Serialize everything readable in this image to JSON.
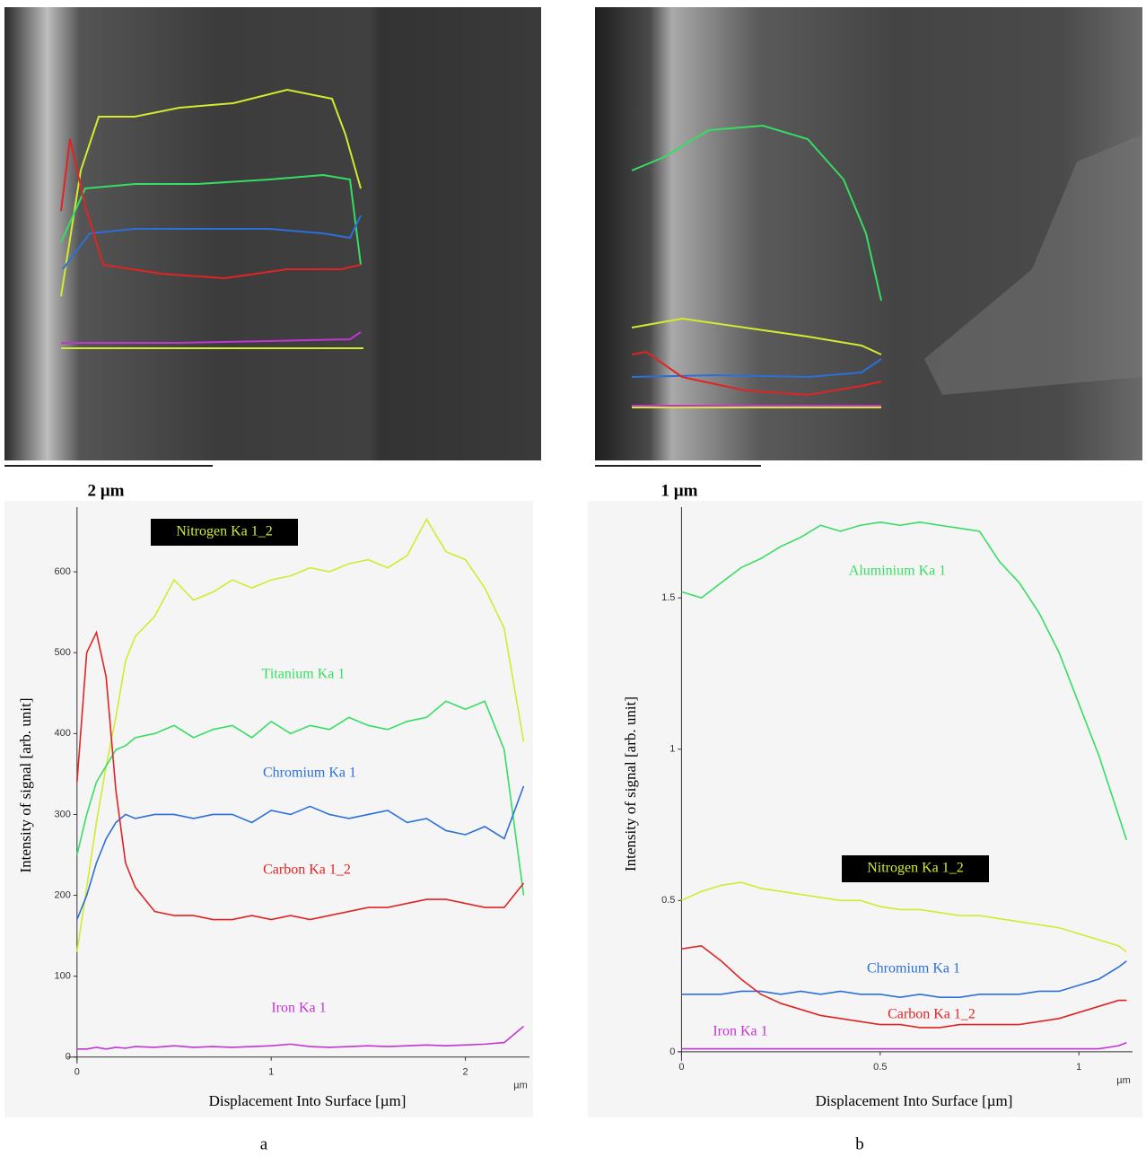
{
  "chart_data": [
    {
      "type": "line",
      "x_label": "Displacement Into Surface [µm]",
      "y_label": "Intensity of signal [arb.  unit]",
      "x_unit": "µm",
      "xlim": [
        -0.05,
        2.33
      ],
      "xticks": [
        0,
        1,
        2
      ],
      "ylim": [
        -8,
        680
      ],
      "yticks": [
        0,
        100,
        200,
        300,
        400,
        500,
        600
      ],
      "x": [
        0,
        0.05,
        0.1,
        0.15,
        0.2,
        0.25,
        0.3,
        0.4,
        0.5,
        0.6,
        0.7,
        0.8,
        0.9,
        1.0,
        1.1,
        1.2,
        1.3,
        1.4,
        1.5,
        1.6,
        1.7,
        1.8,
        1.9,
        2.0,
        2.1,
        2.2,
        2.3
      ],
      "series": [
        {
          "name": "Nitrogen Ka 1_2",
          "color": "#d4ea2e",
          "values": [
            130,
            210,
            290,
            360,
            420,
            490,
            520,
            545,
            590,
            565,
            575,
            590,
            580,
            590,
            595,
            605,
            600,
            610,
            615,
            605,
            620,
            665,
            625,
            615,
            580,
            530,
            390
          ]
        },
        {
          "name": "Titanium Ka 1",
          "color": "#35de62",
          "values": [
            250,
            300,
            340,
            360,
            380,
            385,
            395,
            400,
            410,
            395,
            405,
            410,
            395,
            415,
            400,
            410,
            405,
            420,
            410,
            405,
            415,
            420,
            440,
            430,
            440,
            380,
            200
          ]
        },
        {
          "name": "Chromium Ka 1",
          "color": "#2b6fd8",
          "values": [
            170,
            200,
            240,
            270,
            290,
            300,
            295,
            300,
            300,
            295,
            300,
            300,
            290,
            305,
            300,
            310,
            300,
            295,
            300,
            305,
            290,
            295,
            280,
            275,
            285,
            270,
            335
          ]
        },
        {
          "name": "Carbon Ka 1_2",
          "color": "#e02424",
          "values": [
            340,
            500,
            525,
            470,
            330,
            240,
            210,
            180,
            175,
            175,
            170,
            170,
            175,
            170,
            175,
            170,
            175,
            180,
            185,
            185,
            190,
            195,
            195,
            190,
            185,
            185,
            215
          ]
        },
        {
          "name": "Iron Ka 1",
          "color": "#c433d4",
          "values": [
            10,
            10,
            12,
            10,
            12,
            11,
            13,
            12,
            14,
            12,
            13,
            12,
            13,
            14,
            16,
            13,
            12,
            13,
            14,
            13,
            14,
            15,
            14,
            15,
            16,
            18,
            38
          ]
        }
      ]
    },
    {
      "type": "line",
      "x_label": "Displacement Into Surface [µm]",
      "y_label": "Intensity of signal [arb.  unit]",
      "x_unit": "µm",
      "xlim": [
        -0.01,
        1.135
      ],
      "xticks": [
        0,
        0.5,
        1
      ],
      "ylim": [
        -0.03,
        1.8
      ],
      "yticks": [
        0,
        0.5,
        1,
        1.5
      ],
      "x": [
        0,
        0.05,
        0.1,
        0.15,
        0.2,
        0.25,
        0.3,
        0.35,
        0.4,
        0.45,
        0.5,
        0.55,
        0.6,
        0.65,
        0.7,
        0.75,
        0.8,
        0.85,
        0.9,
        0.95,
        1.0,
        1.05,
        1.1,
        1.12
      ],
      "series": [
        {
          "name": "Aluminium Ka 1",
          "color": "#35de62",
          "values": [
            1.52,
            1.5,
            1.55,
            1.6,
            1.63,
            1.67,
            1.7,
            1.74,
            1.72,
            1.74,
            1.75,
            1.74,
            1.75,
            1.74,
            1.73,
            1.72,
            1.62,
            1.55,
            1.45,
            1.32,
            1.15,
            0.98,
            0.78,
            0.7
          ]
        },
        {
          "name": "Nitrogen Ka 1_2",
          "color": "#d4ea2e",
          "values": [
            0.5,
            0.53,
            0.55,
            0.56,
            0.54,
            0.53,
            0.52,
            0.51,
            0.5,
            0.5,
            0.48,
            0.47,
            0.47,
            0.46,
            0.45,
            0.45,
            0.44,
            0.43,
            0.42,
            0.41,
            0.39,
            0.37,
            0.35,
            0.33
          ]
        },
        {
          "name": "Chromium Ka 1",
          "color": "#2b6fd8",
          "values": [
            0.19,
            0.19,
            0.19,
            0.2,
            0.2,
            0.19,
            0.2,
            0.19,
            0.2,
            0.19,
            0.19,
            0.18,
            0.19,
            0.18,
            0.18,
            0.19,
            0.19,
            0.19,
            0.2,
            0.2,
            0.22,
            0.24,
            0.28,
            0.3
          ]
        },
        {
          "name": "Carbon Ka 1_2",
          "color": "#e02424",
          "values": [
            0.34,
            0.35,
            0.3,
            0.24,
            0.19,
            0.16,
            0.14,
            0.12,
            0.11,
            0.1,
            0.09,
            0.09,
            0.08,
            0.08,
            0.09,
            0.09,
            0.09,
            0.09,
            0.1,
            0.11,
            0.13,
            0.15,
            0.17,
            0.17
          ]
        },
        {
          "name": "Iron Ka 1",
          "color": "#c433d4",
          "values": [
            0.01,
            0.01,
            0.01,
            0.01,
            0.01,
            0.01,
            0.01,
            0.01,
            0.01,
            0.01,
            0.01,
            0.01,
            0.01,
            0.01,
            0.01,
            0.01,
            0.01,
            0.01,
            0.01,
            0.01,
            0.01,
            0.01,
            0.02,
            0.03
          ]
        }
      ]
    }
  ],
  "images": [
    {
      "scale_bar": "2 µm",
      "caption": "a"
    },
    {
      "scale_bar": "1 µm",
      "caption": "b"
    }
  ]
}
